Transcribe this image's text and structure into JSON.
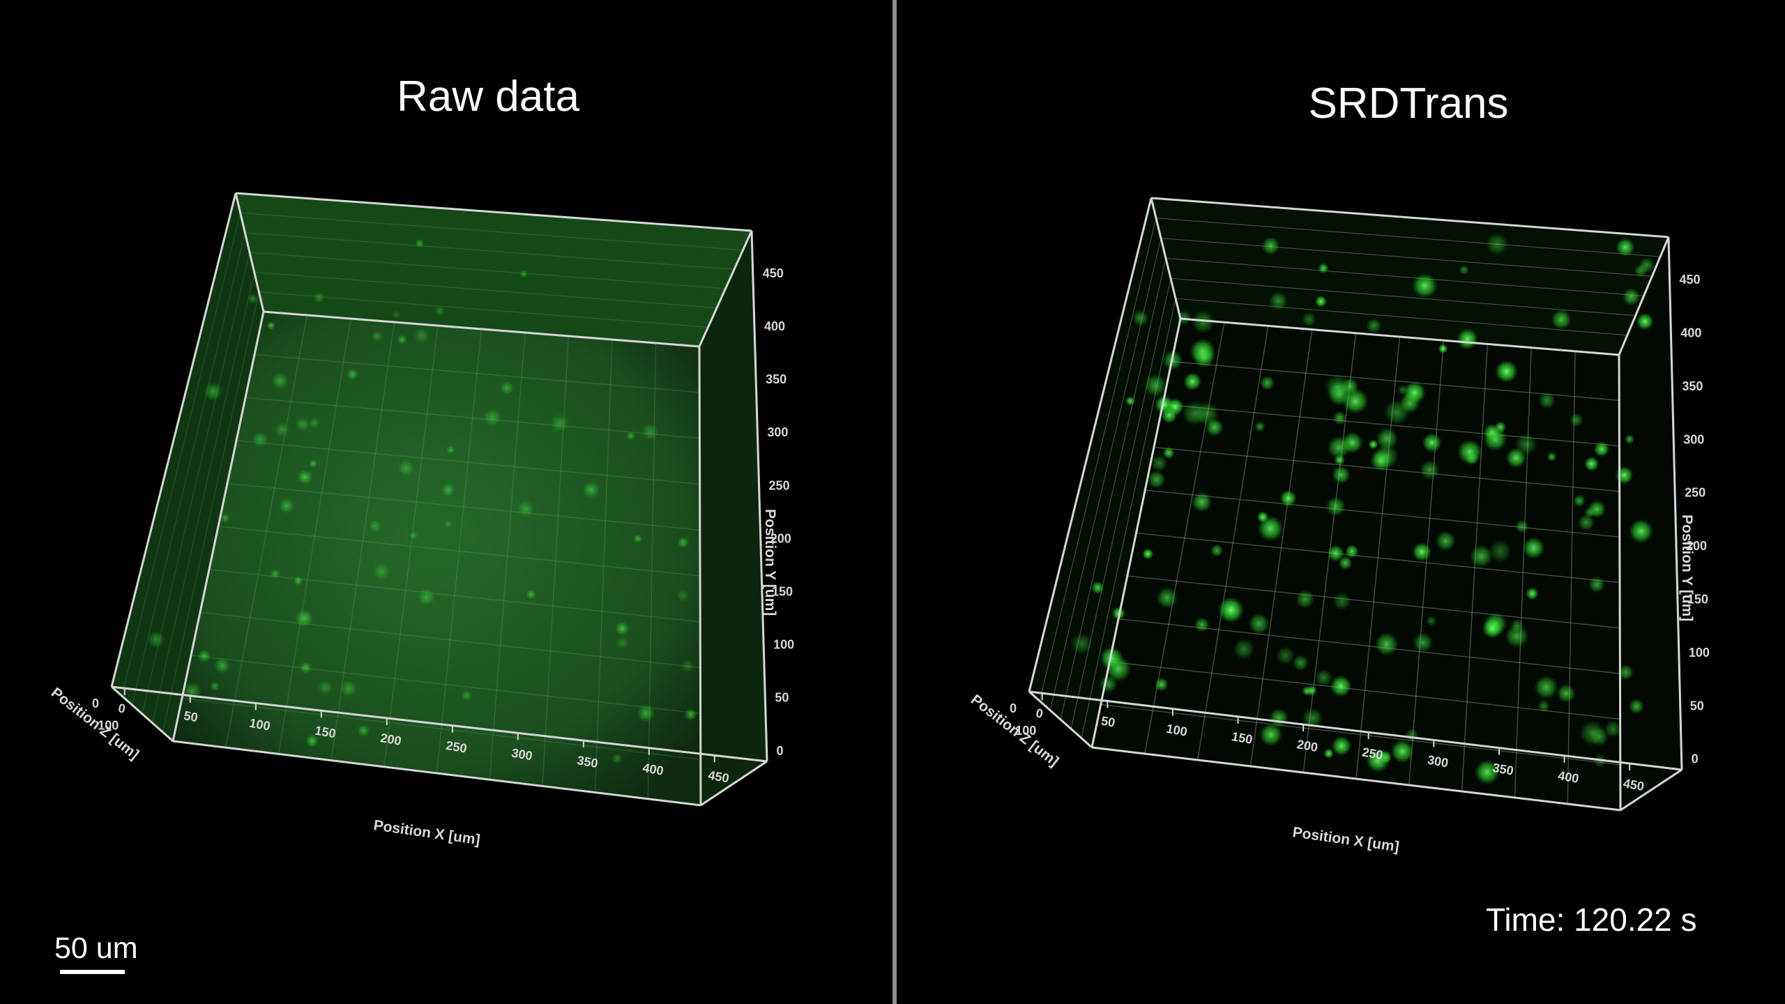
{
  "panels": [
    {
      "title": "Raw data",
      "x_axis_label": "Position X [um]",
      "y_axis_label": "Position Y [um]",
      "z_axis_label": "Position Z [um]",
      "x_ticks": [
        "0",
        "50",
        "100",
        "150",
        "200",
        "250",
        "300",
        "350",
        "400",
        "450"
      ],
      "y_ticks": [
        "0",
        "50",
        "100",
        "150",
        "200",
        "250",
        "300",
        "350",
        "400",
        "450"
      ],
      "z_ticks": [
        "0",
        "100"
      ]
    },
    {
      "title": "SRDTrans",
      "x_axis_label": "Position X [um]",
      "y_axis_label": "Position Y [um]",
      "z_axis_label": "Position Z [um]",
      "x_ticks": [
        "0",
        "50",
        "100",
        "150",
        "200",
        "250",
        "300",
        "350",
        "400",
        "450"
      ],
      "y_ticks": [
        "0",
        "50",
        "100",
        "150",
        "200",
        "250",
        "300",
        "350",
        "400",
        "450"
      ],
      "z_ticks": [
        "0",
        "100"
      ]
    }
  ],
  "scale_bar": {
    "label": "50 um"
  },
  "time": {
    "label": "Time: 120.22 s"
  },
  "colors": {
    "signal": "#3cff3c",
    "raw_background": "#1f5a1f",
    "box_outline": "#d6d6d6",
    "background": "#000000"
  }
}
